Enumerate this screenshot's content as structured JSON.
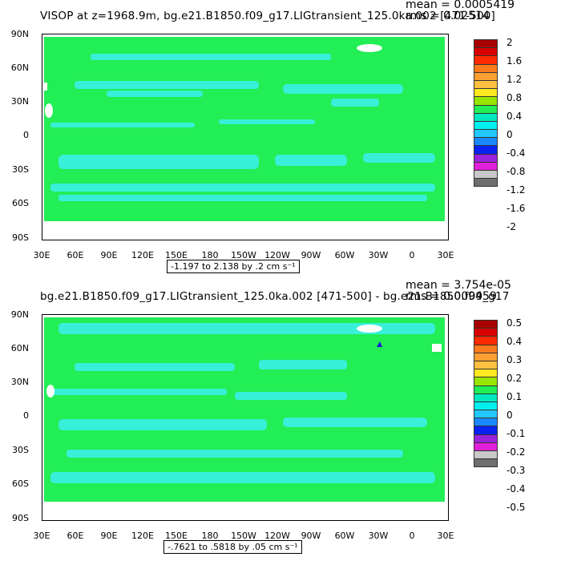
{
  "panels": [
    {
      "title": "VISOP at z=1968.9m, bg.e21.B1850.f09_g17.LIGtransient_125.0ka.002 [471-500]",
      "mean": "mean = 0.0005419",
      "rms": "rms = 0.02514",
      "range_text": "-1.197 to 2.138 by .2 cm s⁻¹",
      "legend_labels": [
        "2",
        "1.6",
        "1.2",
        "0.8",
        "0.4",
        "0",
        "-0.4",
        "-0.8",
        "-1.2",
        "-1.6",
        "-2"
      ]
    },
    {
      "title": "bg.e21.B1850.f09_g17.LIGtransient_125.0ka.002 [471-500] - bg.e21.B1850.f09_g17",
      "mean": "mean = 3.754e-05",
      "rms": "rms = 0.009459",
      "range_text": "-.7621 to .5818 by .05 cm s⁻¹",
      "legend_labels": [
        "0.5",
        "0.4",
        "0.3",
        "0.2",
        "0.1",
        "0",
        "-0.1",
        "-0.2",
        "-0.3",
        "-0.4",
        "-0.5"
      ]
    }
  ],
  "lat_labels": [
    "90N",
    "60N",
    "30N",
    "0",
    "30S",
    "60S",
    "90S"
  ],
  "lon_labels": [
    "30E",
    "60E",
    "90E",
    "120E",
    "150E",
    "180",
    "150W",
    "120W",
    "90W",
    "60W",
    "30W",
    "0",
    "30E"
  ],
  "legend_colors": [
    "#a80000",
    "#d80000",
    "#ff2a00",
    "#ff7a1a",
    "#ffa033",
    "#ffc040",
    "#ffe820",
    "#96e600",
    "#22ee55",
    "#00e8c0",
    "#00f0f0",
    "#22c8ff",
    "#1a88ff",
    "#0a22f0",
    "#9a22dc",
    "#e020d8",
    "#c8c8c8",
    "#6e6e6e"
  ],
  "colors": {
    "ocean_green": "#22ee55",
    "cyan": "#38f0d8",
    "land": "#ffffff"
  }
}
